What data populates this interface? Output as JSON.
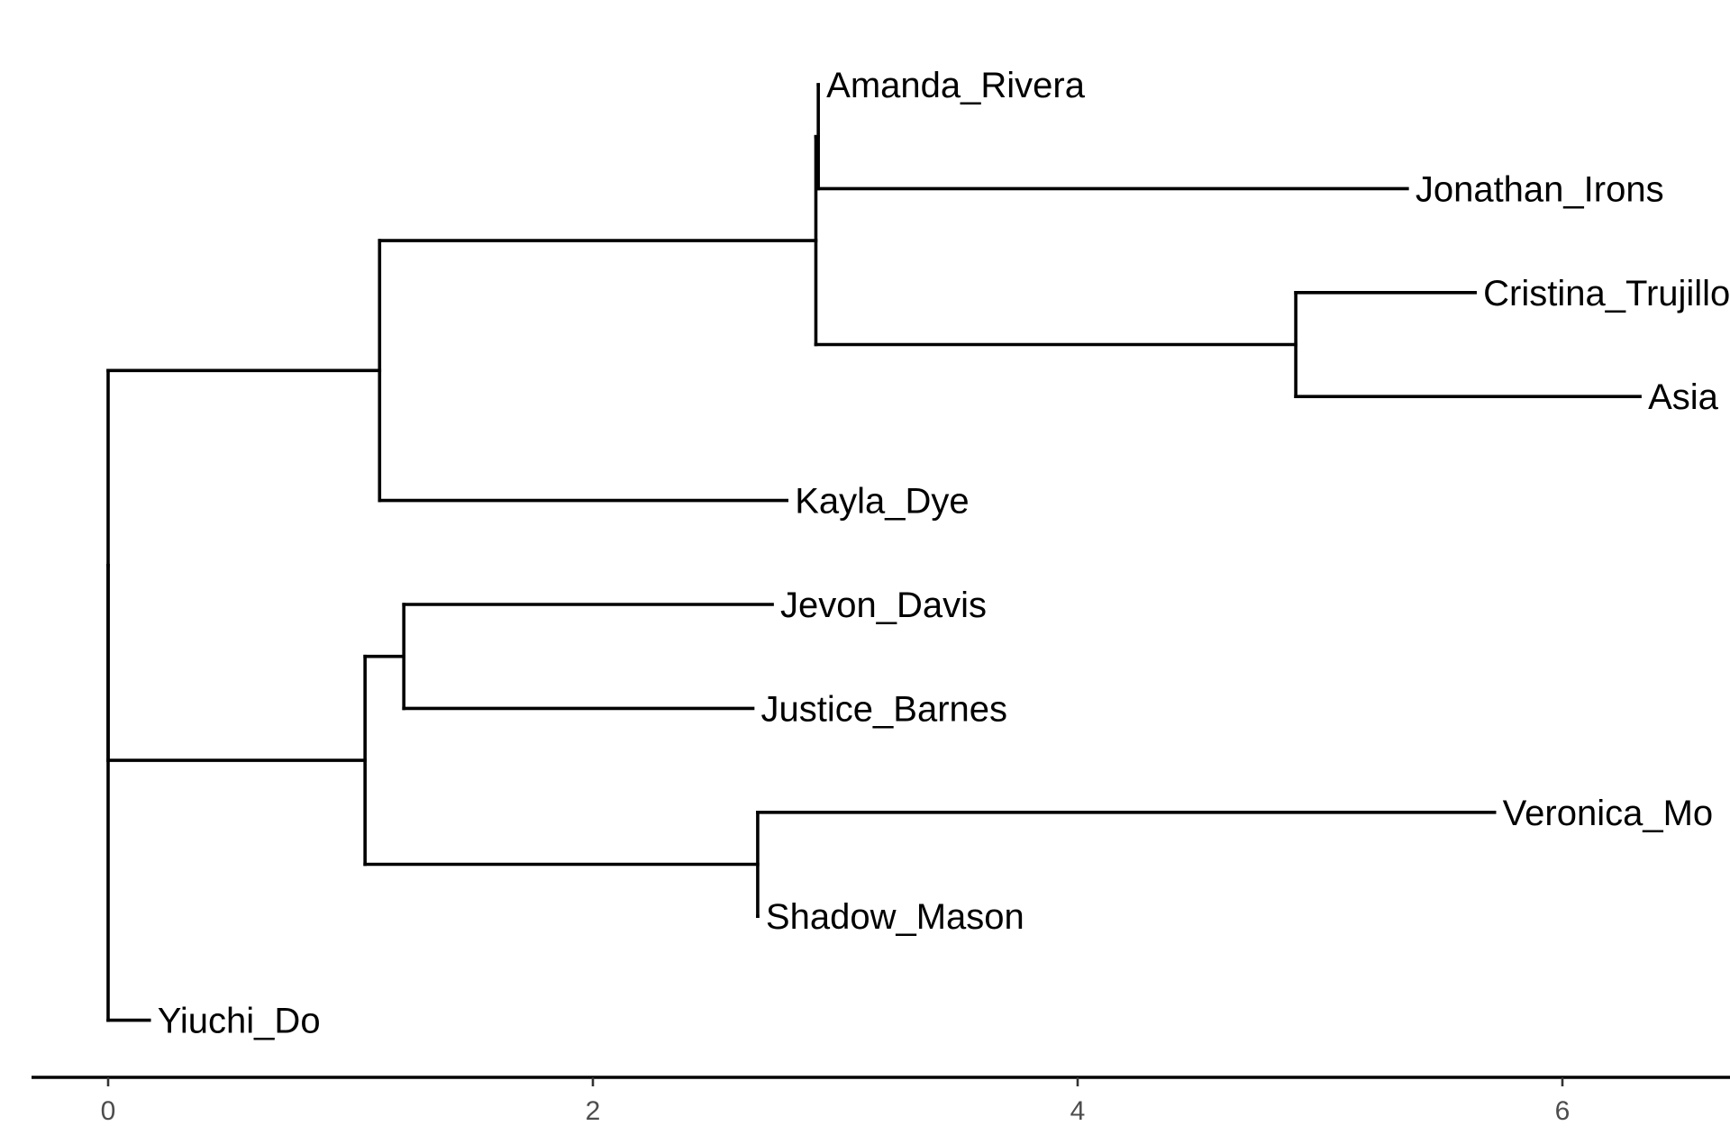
{
  "tree": {
    "type": "phylogram",
    "root": {
      "children": [
        {
          "length": 0.0,
          "children": [
            {
              "length": 1.12,
              "children": [
                {
                  "length": 1.8,
                  "children": [
                    {
                      "length": 0.01,
                      "children": [
                        {
                          "name": "Amanda_Rivera",
                          "length": 0.0
                        },
                        {
                          "name": "Jonathan_Irons",
                          "length": 2.43
                        }
                      ]
                    },
                    {
                      "length": 1.98,
                      "children": [
                        {
                          "name": "Cristina_Trujillo",
                          "length": 0.74
                        },
                        {
                          "name": "Asia",
                          "length": 1.42
                        }
                      ]
                    }
                  ]
                },
                {
                  "name": "Kayla_Dye",
                  "length": 1.68
                }
              ]
            },
            {
              "length": 1.06,
              "children": [
                {
                  "length": 0.16,
                  "children": [
                    {
                      "name": "Jevon_Davis",
                      "length": 1.52
                    },
                    {
                      "name": "Justice_Barnes",
                      "length": 1.44
                    }
                  ]
                },
                {
                  "length": 1.62,
                  "children": [
                    {
                      "name": "Veronica_Mo",
                      "length": 3.04
                    },
                    {
                      "name": "Shadow_Mason",
                      "length": 0.0
                    }
                  ]
                }
              ]
            }
          ]
        },
        {
          "name": "Yiuchi_Do",
          "length": 0.17
        }
      ]
    }
  },
  "axis": {
    "range": [
      0,
      6.8
    ],
    "ticks": [
      0,
      2,
      4,
      6
    ],
    "tick_labels": [
      "0",
      "2",
      "4",
      "6"
    ]
  },
  "colors": {
    "branch": "#000000",
    "axis": "#000000",
    "tick_label": "#4d4d4d",
    "background": "#ffffff"
  }
}
